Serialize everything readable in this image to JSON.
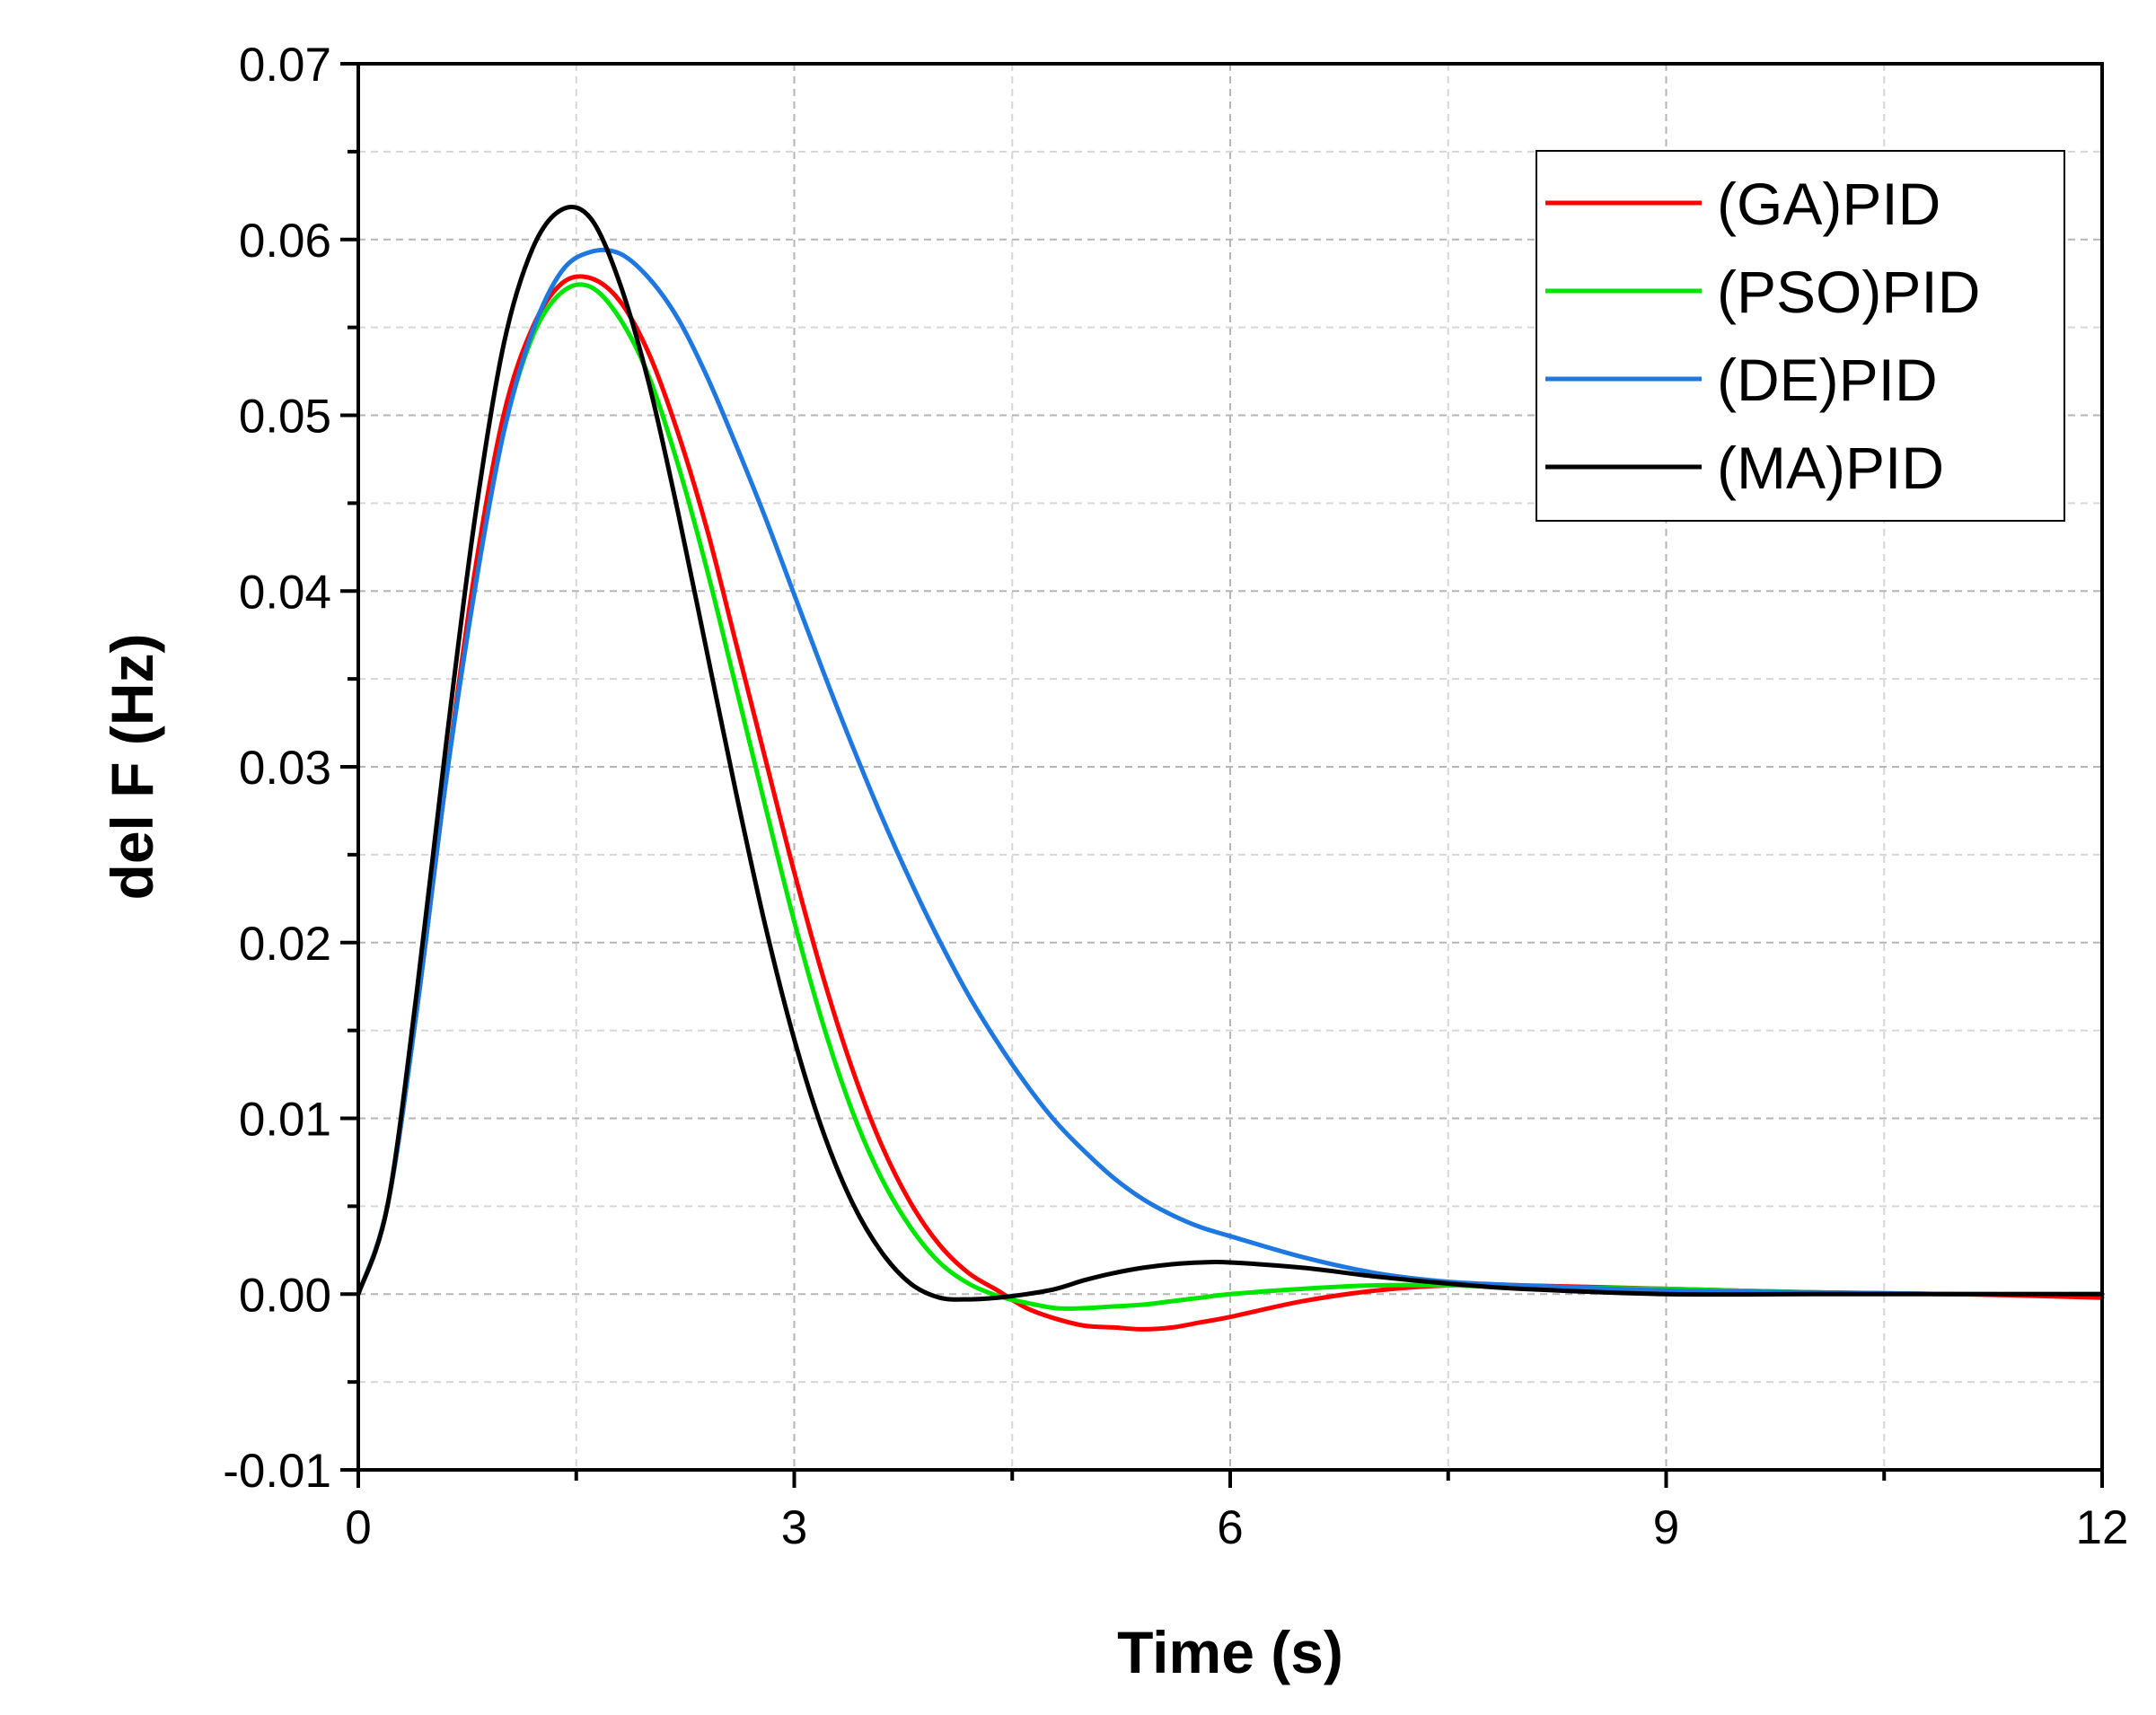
{
  "chart_data": {
    "type": "line",
    "title": "",
    "xlabel": "Time (s)",
    "ylabel": "del F (Hz)",
    "xlim": [
      0,
      12
    ],
    "ylim": [
      -0.01,
      0.07
    ],
    "x_ticks": [
      0,
      3,
      6,
      9,
      12
    ],
    "x_tick_labels": [
      "0",
      "3",
      "6",
      "9",
      "12"
    ],
    "y_ticks": [
      -0.01,
      0,
      0.01,
      0.02,
      0.03,
      0.04,
      0.05,
      0.06,
      0.07
    ],
    "y_tick_labels": [
      "-0.01",
      "0.00",
      "0.01",
      "0.02",
      "0.03",
      "0.04",
      "0.05",
      "0.06",
      "0.07"
    ],
    "grid": true,
    "legend_position": "top-right",
    "series": [
      {
        "name": "(GA)PID",
        "color": "#ff0000",
        "x": [
          0,
          0.2,
          0.4,
          0.6,
          0.8,
          1.0,
          1.2,
          1.4,
          1.6,
          1.8,
          2.0,
          2.2,
          2.4,
          2.6,
          2.8,
          3.0,
          3.2,
          3.4,
          3.6,
          3.8,
          4.0,
          4.2,
          4.4,
          4.6,
          4.8,
          5.0,
          5.2,
          5.4,
          5.6,
          5.8,
          6.0,
          6.5,
          7.0,
          7.5,
          8.0,
          9.0,
          10.0,
          11.0,
          12.0
        ],
        "y": [
          0,
          0.005,
          0.016,
          0.029,
          0.041,
          0.05,
          0.055,
          0.0575,
          0.0578,
          0.0565,
          0.0535,
          0.049,
          0.0435,
          0.037,
          0.0305,
          0.024,
          0.018,
          0.0128,
          0.0085,
          0.0052,
          0.0028,
          0.0012,
          0.0002,
          -0.0008,
          -0.0014,
          -0.0018,
          -0.0019,
          -0.002,
          -0.0019,
          -0.0016,
          -0.0013,
          -0.0004,
          0.0002,
          0.0005,
          0.0005,
          0.0003,
          0.0001,
          0.0,
          -0.0002
        ]
      },
      {
        "name": "(PSO)PID",
        "color": "#00e600",
        "x": [
          0,
          0.2,
          0.4,
          0.6,
          0.8,
          1.0,
          1.2,
          1.4,
          1.6,
          1.8,
          2.0,
          2.2,
          2.4,
          2.6,
          2.8,
          3.0,
          3.2,
          3.4,
          3.6,
          3.8,
          4.0,
          4.2,
          4.4,
          4.6,
          4.8,
          5.0,
          5.2,
          5.4,
          5.6,
          5.8,
          6.0,
          6.5,
          7.0,
          7.5,
          8.0,
          9.0,
          10.0,
          11.0,
          12.0
        ],
        "y": [
          0,
          0.005,
          0.016,
          0.029,
          0.04,
          0.049,
          0.0545,
          0.057,
          0.0573,
          0.0555,
          0.0522,
          0.0472,
          0.0412,
          0.0345,
          0.0278,
          0.0212,
          0.0153,
          0.0104,
          0.0066,
          0.0038,
          0.0018,
          0.0006,
          -0.0001,
          -0.0005,
          -0.0008,
          -0.0008,
          -0.0007,
          -0.0006,
          -0.0004,
          -0.0002,
          0.0,
          0.0003,
          0.0005,
          0.0005,
          0.0004,
          0.0003,
          0.0001,
          0.0,
          0.0
        ]
      },
      {
        "name": "(DE)PID",
        "color": "#1f78e0",
        "x": [
          0,
          0.2,
          0.4,
          0.6,
          0.8,
          1.0,
          1.2,
          1.4,
          1.6,
          1.8,
          2.0,
          2.2,
          2.4,
          2.6,
          2.8,
          3.0,
          3.2,
          3.4,
          3.6,
          3.8,
          4.0,
          4.2,
          4.4,
          4.6,
          4.8,
          5.0,
          5.2,
          5.4,
          5.6,
          5.8,
          6.0,
          6.5,
          7.0,
          7.5,
          8.0,
          9.0,
          10.0,
          11.0,
          12.0
        ],
        "y": [
          0,
          0.005,
          0.016,
          0.029,
          0.04,
          0.049,
          0.0548,
          0.0582,
          0.0593,
          0.0592,
          0.0578,
          0.0555,
          0.0522,
          0.0483,
          0.0442,
          0.0398,
          0.0354,
          0.0312,
          0.0272,
          0.0235,
          0.0201,
          0.017,
          0.0143,
          0.0119,
          0.0098,
          0.0081,
          0.0066,
          0.0054,
          0.0045,
          0.0038,
          0.0033,
          0.0021,
          0.0012,
          0.0007,
          0.0005,
          0.0002,
          0.0001,
          0.0,
          0.0
        ]
      },
      {
        "name": "(MA)PID",
        "color": "#000000",
        "x": [
          0,
          0.2,
          0.4,
          0.6,
          0.8,
          1.0,
          1.2,
          1.4,
          1.6,
          1.8,
          2.0,
          2.2,
          2.4,
          2.6,
          2.8,
          3.0,
          3.2,
          3.4,
          3.6,
          3.8,
          4.0,
          4.2,
          4.4,
          4.6,
          4.8,
          5.0,
          5.2,
          5.4,
          5.6,
          5.8,
          6.0,
          6.5,
          7.0,
          7.5,
          8.0,
          9.0,
          10.0,
          11.0,
          12.0
        ],
        "y": [
          0,
          0.005,
          0.017,
          0.031,
          0.044,
          0.054,
          0.0595,
          0.0617,
          0.0612,
          0.0575,
          0.0518,
          0.0445,
          0.0365,
          0.0285,
          0.021,
          0.0145,
          0.0092,
          0.0052,
          0.0024,
          0.0006,
          -0.0002,
          -0.0003,
          -0.0002,
          0.0,
          0.0003,
          0.0008,
          0.0012,
          0.0015,
          0.0017,
          0.0018,
          0.0018,
          0.0015,
          0.001,
          0.0006,
          0.0003,
          0.0,
          0.0,
          0.0,
          0.0
        ]
      }
    ]
  }
}
